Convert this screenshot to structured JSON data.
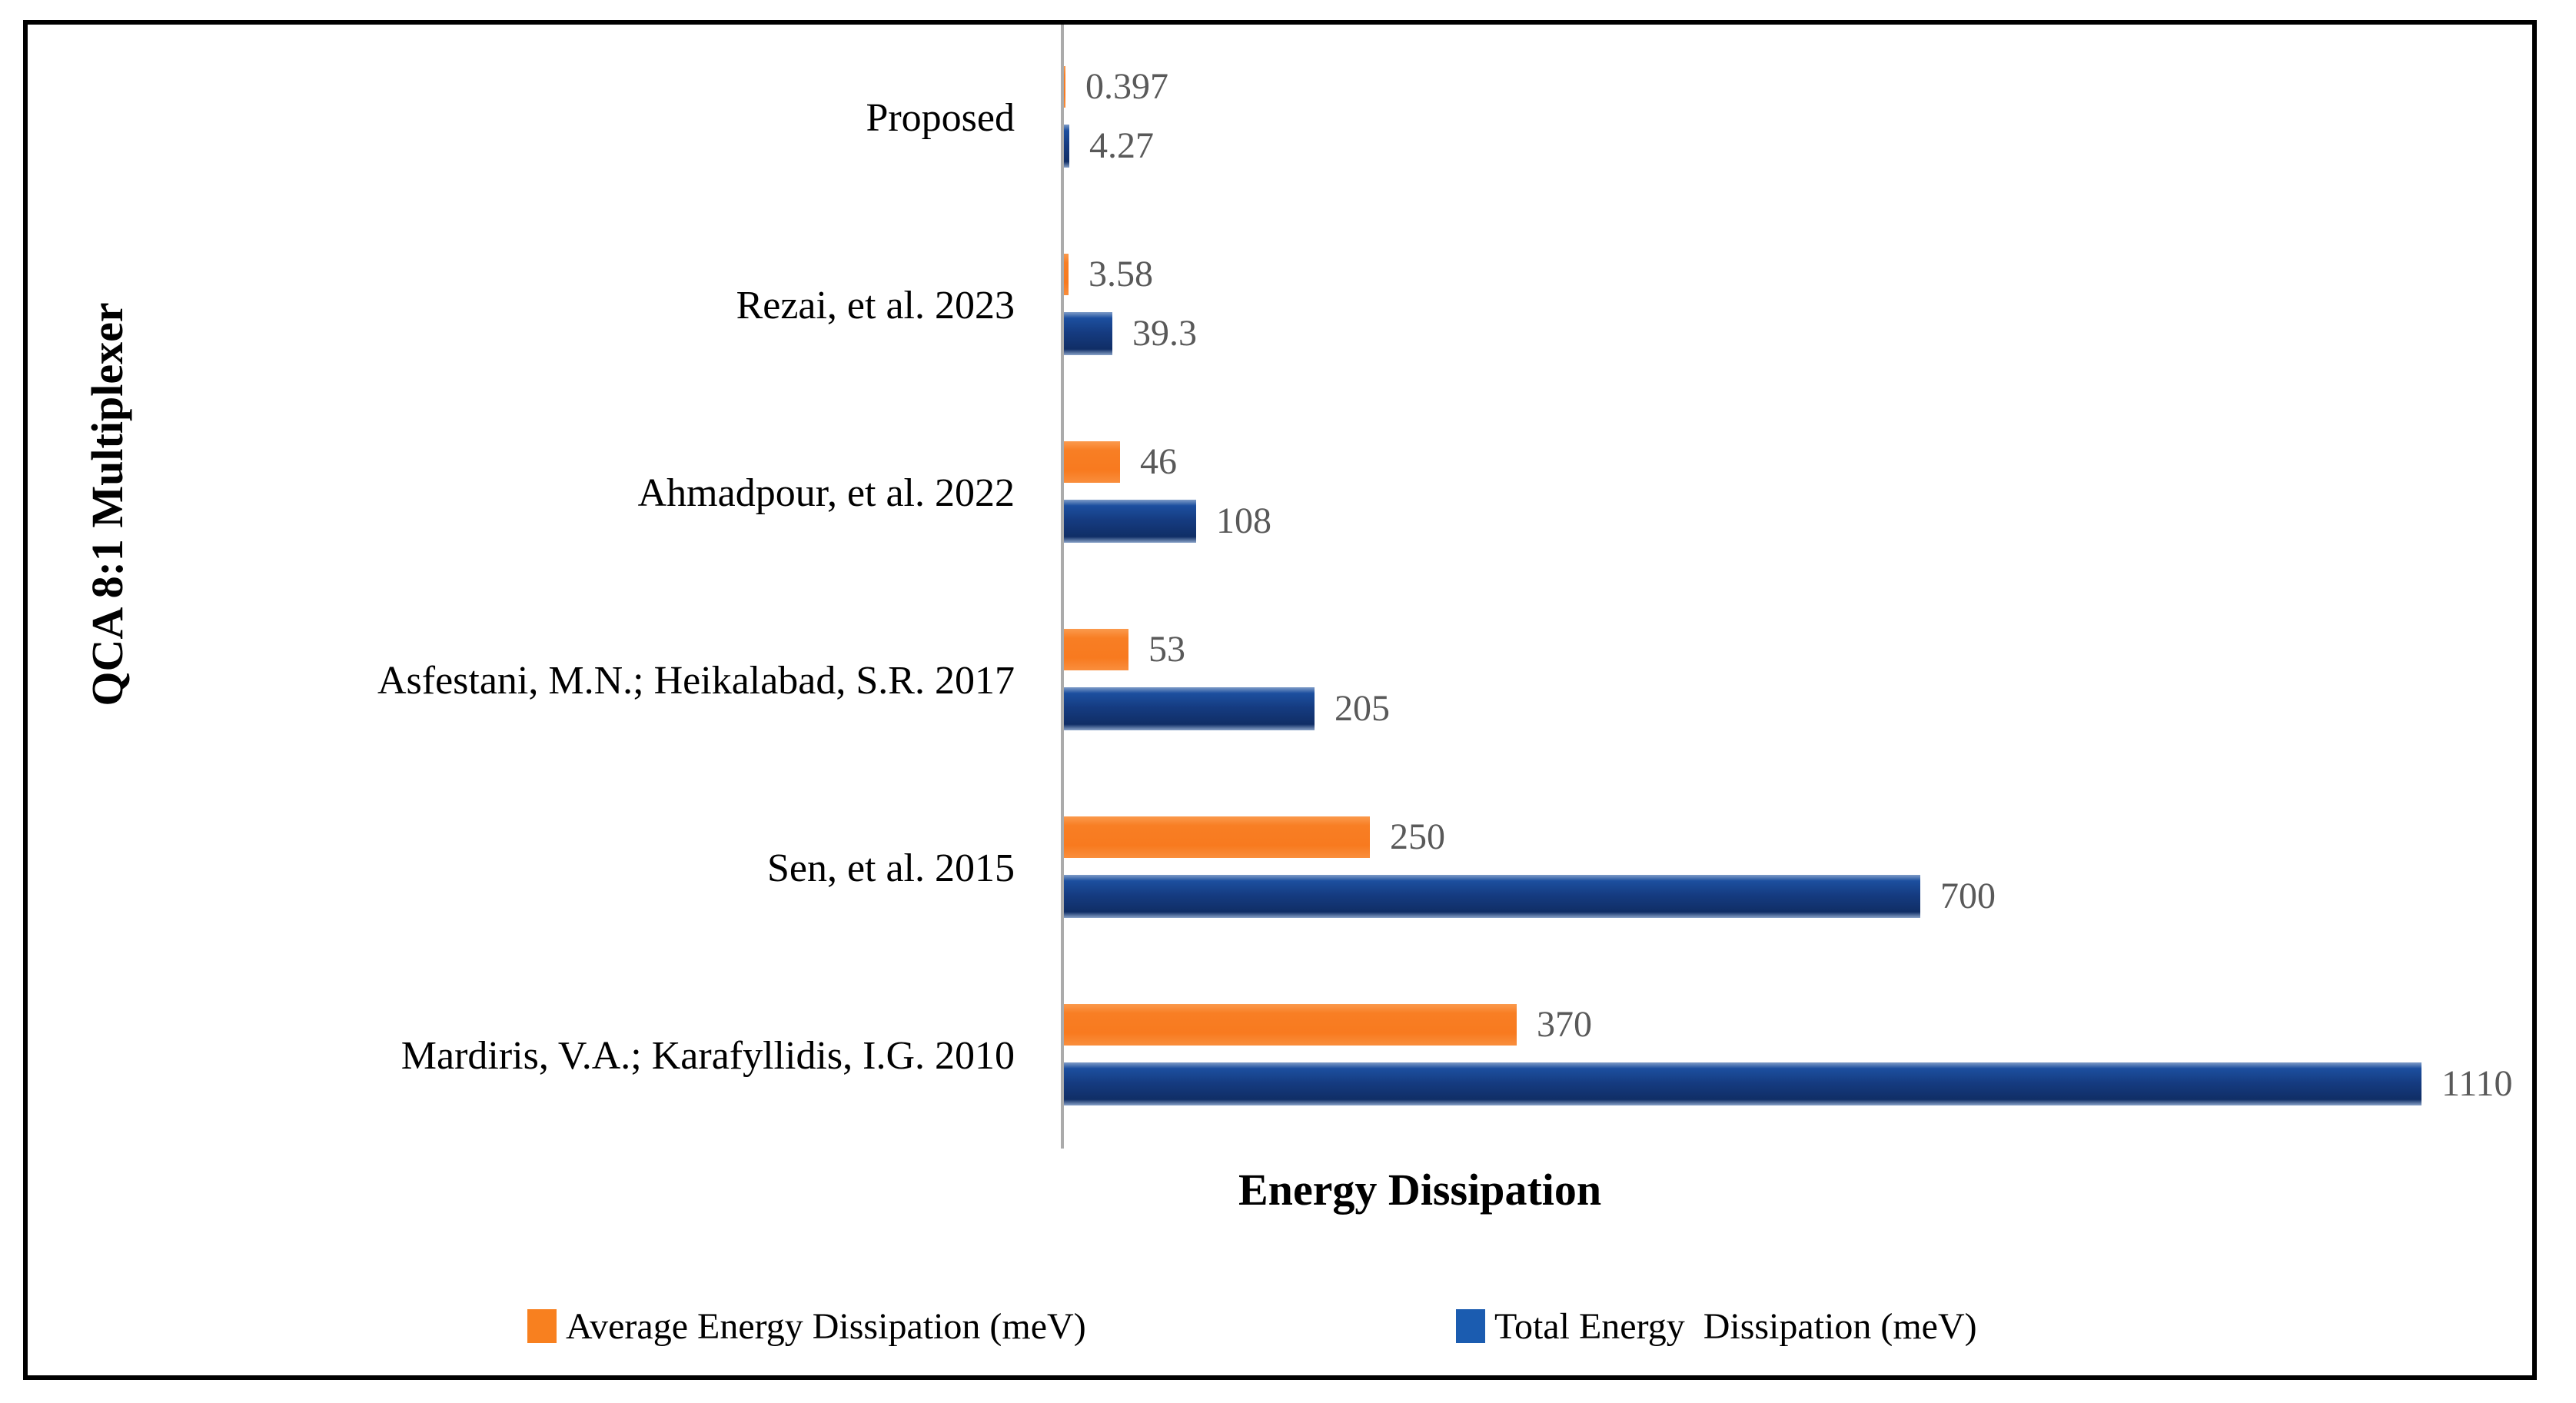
{
  "chart_data": {
    "type": "bar",
    "orientation": "horizontal",
    "xlabel": "Energy Dissipation",
    "ylabel": "QCA 8:1 Multiplexer",
    "xlim": [
      0,
      1200
    ],
    "grid": false,
    "legend_position": "bottom",
    "value_labels_shown": true,
    "categories": [
      "Proposed",
      "Rezai, et al. 2023",
      "Ahmadpour, et al. 2022",
      "Asfestani, M.N.; Heikalabad, S.R. 2017",
      "Sen, et al. 2015",
      "Mardiris, V.A.; Karafyllidis, I.G. 2010"
    ],
    "series": [
      {
        "name": "Average Energy Dissipation (meV)",
        "color": "#f8801f",
        "values": [
          0.397,
          3.58,
          46,
          53,
          250,
          370
        ],
        "value_labels": [
          "0.397",
          "3.58",
          "46",
          "53",
          "250",
          "370"
        ]
      },
      {
        "name": "Total Energy  Dissipation (meV)",
        "color": "#1b5cb0",
        "values": [
          4.27,
          39.3,
          108,
          205,
          700,
          1110
        ],
        "value_labels": [
          "4.27",
          "39.3",
          "108",
          "205",
          "700",
          "1110"
        ]
      }
    ],
    "colors": {
      "value_label_text": "#595959",
      "axis_line": "#ababab",
      "frame_border": "#000000"
    }
  }
}
